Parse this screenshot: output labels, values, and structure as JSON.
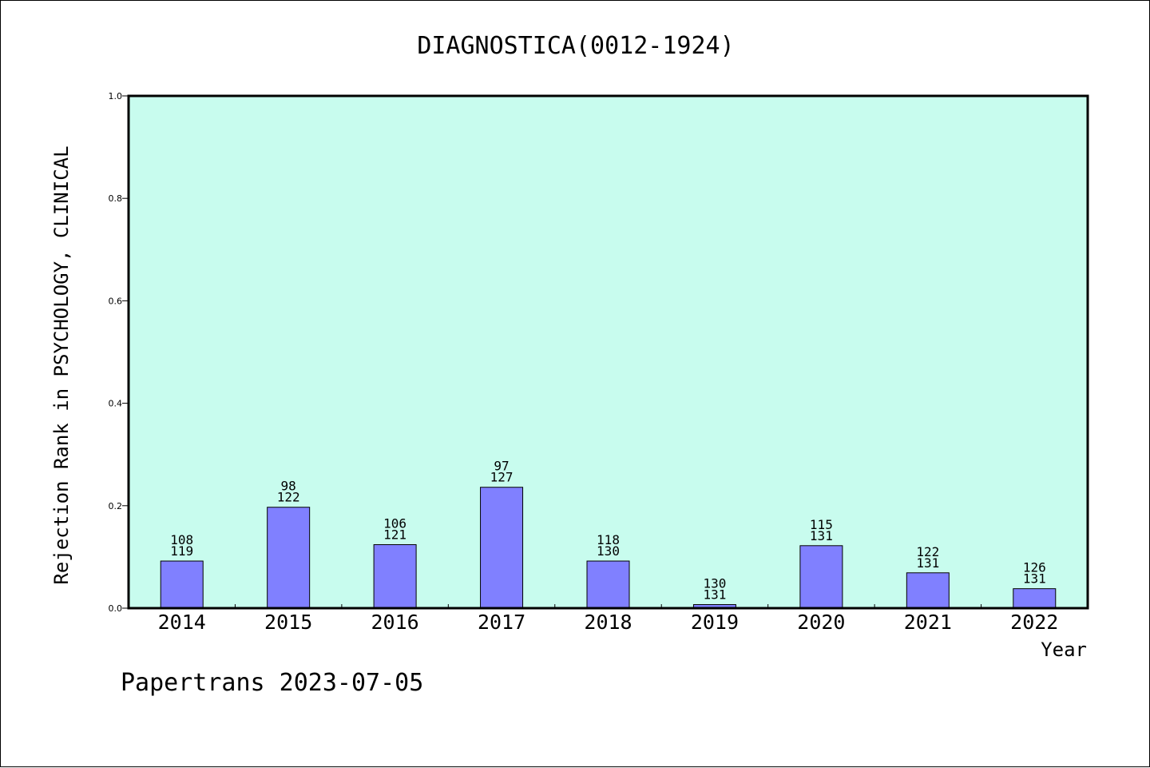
{
  "chart_data": {
    "type": "bar",
    "title": "DIAGNOSTICA(0012-1924)",
    "xlabel": "Year",
    "ylabel": "Rejection Rank in PSYCHOLOGY, CLINICAL",
    "ylim": [
      0,
      1.0
    ],
    "yticks": [
      "0.0",
      "0.2",
      "0.4",
      "0.6",
      "0.8",
      "1.0"
    ],
    "categories": [
      "2014",
      "2015",
      "2016",
      "2017",
      "2018",
      "2019",
      "2020",
      "2021",
      "2022"
    ],
    "values": [
      0.092,
      0.197,
      0.124,
      0.236,
      0.092,
      0.007,
      0.122,
      0.069,
      0.038
    ],
    "label_top": [
      "108",
      "98",
      "106",
      "97",
      "118",
      "130",
      "115",
      "122",
      "126"
    ],
    "label_bottom": [
      "119",
      "122",
      "121",
      "127",
      "130",
      "131",
      "131",
      "131",
      "131"
    ],
    "grid": false,
    "colors": {
      "plot_bg": "#c8fcee",
      "bar": "#8080ff"
    }
  },
  "footer": "Papertrans 2023-07-05"
}
